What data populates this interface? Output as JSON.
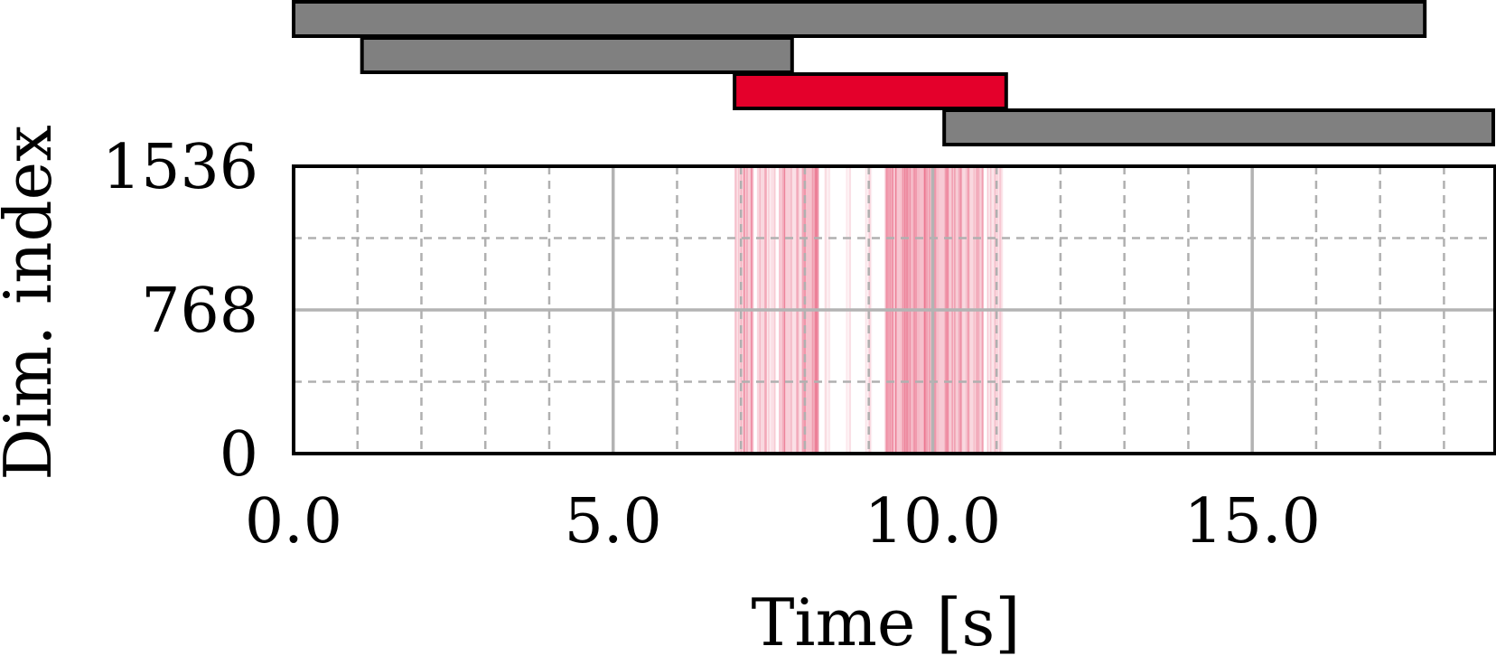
{
  "chart_data": {
    "type": "heatmap",
    "title": "",
    "xlabel": "Time [s]",
    "ylabel": "Dim. index",
    "xlim": [
      0,
      18.8
    ],
    "ylim": [
      0,
      1536
    ],
    "x_ticks": [
      {
        "value": 0,
        "label": "0.0"
      },
      {
        "value": 5,
        "label": "5.0"
      },
      {
        "value": 10,
        "label": "10.0"
      },
      {
        "value": 15,
        "label": "15.0"
      }
    ],
    "y_ticks": [
      {
        "value": 0,
        "label": "0"
      },
      {
        "value": 768,
        "label": "768"
      },
      {
        "value": 1536,
        "label": "1536"
      }
    ],
    "x_minor_grid": [
      1,
      2,
      3,
      4,
      6,
      7,
      8,
      9,
      11,
      12,
      13,
      14,
      16,
      17,
      18
    ],
    "y_minor_grid": [
      384,
      1152
    ],
    "grid": true,
    "segments": [
      {
        "start": 0.0,
        "end": 17.7,
        "color": "#808080",
        "highlighted": false
      },
      {
        "start": 1.07,
        "end": 7.8,
        "color": "#808080",
        "highlighted": false
      },
      {
        "start": 6.9,
        "end": 11.15,
        "color": "#e4002b",
        "highlighted": true
      },
      {
        "start": 10.18,
        "end": 18.8,
        "color": "#808080",
        "highlighted": false
      }
    ],
    "activation_color": "#e8607e",
    "activation_regions": [
      {
        "start": 6.9,
        "end": 7.0,
        "intensity": 0.35
      },
      {
        "start": 7.0,
        "end": 7.2,
        "intensity": 0.55
      },
      {
        "start": 7.25,
        "end": 7.4,
        "intensity": 0.45
      },
      {
        "start": 7.4,
        "end": 7.55,
        "intensity": 0.25
      },
      {
        "start": 7.6,
        "end": 7.8,
        "intensity": 0.55
      },
      {
        "start": 7.8,
        "end": 7.95,
        "intensity": 0.35
      },
      {
        "start": 7.95,
        "end": 8.22,
        "intensity": 0.7
      },
      {
        "start": 8.3,
        "end": 8.4,
        "intensity": 0.15
      },
      {
        "start": 8.65,
        "end": 8.72,
        "intensity": 0.15
      },
      {
        "start": 8.95,
        "end": 9.05,
        "intensity": 0.2
      },
      {
        "start": 9.25,
        "end": 9.5,
        "intensity": 0.65
      },
      {
        "start": 9.5,
        "end": 9.8,
        "intensity": 0.8
      },
      {
        "start": 9.8,
        "end": 10.1,
        "intensity": 0.72
      },
      {
        "start": 10.1,
        "end": 10.45,
        "intensity": 0.6
      },
      {
        "start": 10.45,
        "end": 10.8,
        "intensity": 0.45
      },
      {
        "start": 10.85,
        "end": 11.1,
        "intensity": 0.3
      }
    ]
  }
}
